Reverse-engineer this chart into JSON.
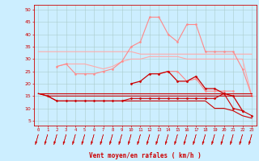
{
  "xlabel": "Vent moyen/en rafales ( km/h )",
  "background_color": "#cceeff",
  "grid_color": "#aacccc",
  "x_ticks": [
    0,
    1,
    2,
    3,
    4,
    5,
    6,
    7,
    8,
    9,
    10,
    11,
    12,
    13,
    14,
    15,
    16,
    17,
    18,
    19,
    20,
    21,
    22,
    23
  ],
  "ylim": [
    3,
    52
  ],
  "yticks": [
    5,
    10,
    15,
    20,
    25,
    30,
    35,
    40,
    45,
    50
  ],
  "series": [
    {
      "color": "#ffaaaa",
      "marker": null,
      "linewidth": 0.8,
      "y": [
        33,
        33,
        33,
        33,
        33,
        33,
        33,
        33,
        33,
        33,
        33,
        32,
        32,
        32,
        32,
        32,
        32,
        32,
        32,
        32,
        32,
        32,
        32,
        32
      ]
    },
    {
      "color": "#ffaaaa",
      "marker": null,
      "linewidth": 0.8,
      "y": [
        null,
        null,
        27,
        28,
        28,
        28,
        27,
        26,
        27,
        29,
        30,
        30,
        31,
        31,
        31,
        31,
        30,
        30,
        30,
        30,
        30,
        30,
        30,
        15
      ]
    },
    {
      "color": "#ff8888",
      "marker": "o",
      "markersize": 1.5,
      "linewidth": 0.8,
      "y": [
        null,
        null,
        27,
        28,
        24,
        24,
        24,
        25,
        26,
        29,
        35,
        37,
        47,
        47,
        40,
        37,
        44,
        44,
        33,
        33,
        33,
        33,
        26,
        15
      ]
    },
    {
      "color": "#ff8888",
      "marker": "o",
      "markersize": 1.5,
      "linewidth": 0.8,
      "y": [
        null,
        null,
        null,
        null,
        null,
        null,
        null,
        null,
        null,
        null,
        null,
        null,
        null,
        24,
        25,
        25,
        21,
        22,
        17,
        17,
        17,
        17,
        null,
        null
      ]
    },
    {
      "color": "#cc0000",
      "marker": null,
      "linewidth": 0.8,
      "y": [
        16,
        15,
        15,
        15,
        15,
        15,
        15,
        15,
        15,
        15,
        15,
        15,
        15,
        15,
        15,
        15,
        15,
        15,
        15,
        15,
        15,
        15,
        15,
        15
      ]
    },
    {
      "color": "#cc0000",
      "marker": null,
      "linewidth": 0.8,
      "y": [
        16,
        16,
        16,
        16,
        16,
        16,
        16,
        16,
        16,
        16,
        16,
        16,
        16,
        16,
        16,
        16,
        16,
        16,
        16,
        16,
        16,
        16,
        16,
        16
      ]
    },
    {
      "color": "#cc0000",
      "marker": null,
      "linewidth": 0.8,
      "y": [
        16,
        15,
        13,
        13,
        13,
        13,
        13,
        13,
        13,
        13,
        13,
        13,
        13,
        13,
        13,
        13,
        13,
        13,
        13,
        10,
        10,
        9,
        7,
        6
      ]
    },
    {
      "color": "#cc0000",
      "marker": "D",
      "markersize": 1.5,
      "linewidth": 0.8,
      "y": [
        null,
        15,
        13,
        13,
        13,
        13,
        13,
        13,
        13,
        13,
        14,
        14,
        14,
        14,
        14,
        14,
        14,
        14,
        14,
        14,
        16,
        10,
        9,
        7
      ]
    },
    {
      "color": "#cc0000",
      "marker": "D",
      "markersize": 1.5,
      "linewidth": 0.9,
      "y": [
        null,
        null,
        null,
        null,
        null,
        null,
        null,
        null,
        null,
        null,
        20,
        21,
        24,
        24,
        25,
        21,
        21,
        23,
        18,
        18,
        16,
        15,
        9,
        null
      ]
    }
  ],
  "arrow_color": "#cc0000",
  "x_values": [
    0,
    1,
    2,
    3,
    4,
    5,
    6,
    7,
    8,
    9,
    10,
    11,
    12,
    13,
    14,
    15,
    16,
    17,
    18,
    19,
    20,
    21,
    22,
    23
  ]
}
